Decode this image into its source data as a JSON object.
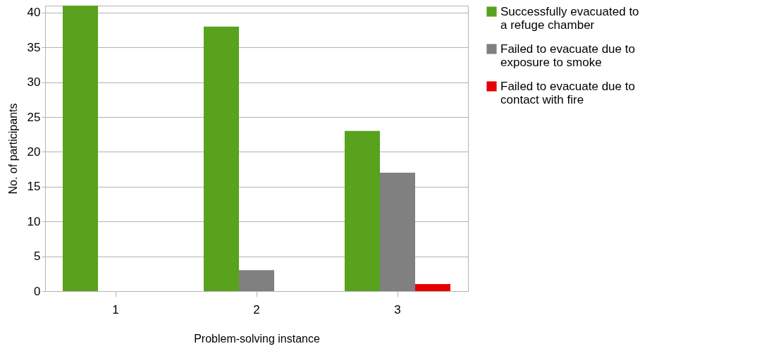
{
  "chart_data": {
    "type": "bar",
    "xlabel": "Problem-solving instance",
    "ylabel": "No. of participants",
    "categories": [
      "1",
      "2",
      "3"
    ],
    "series": [
      {
        "name": "Successfully evacuated to a refuge chamber",
        "color": "#58a21d",
        "values": [
          41,
          38,
          23
        ]
      },
      {
        "name": "Failed to evacuate due to exposure to smoke",
        "color": "#808080",
        "values": [
          0,
          3,
          17
        ]
      },
      {
        "name": "Failed to evacuate due to contact with fire",
        "color": "#e60000",
        "values": [
          0,
          0,
          1
        ]
      }
    ],
    "ylim": [
      0,
      41
    ],
    "yticks": [
      0,
      5,
      10,
      15,
      20,
      25,
      30,
      35,
      40
    ],
    "grid": "y",
    "legend": "right"
  }
}
